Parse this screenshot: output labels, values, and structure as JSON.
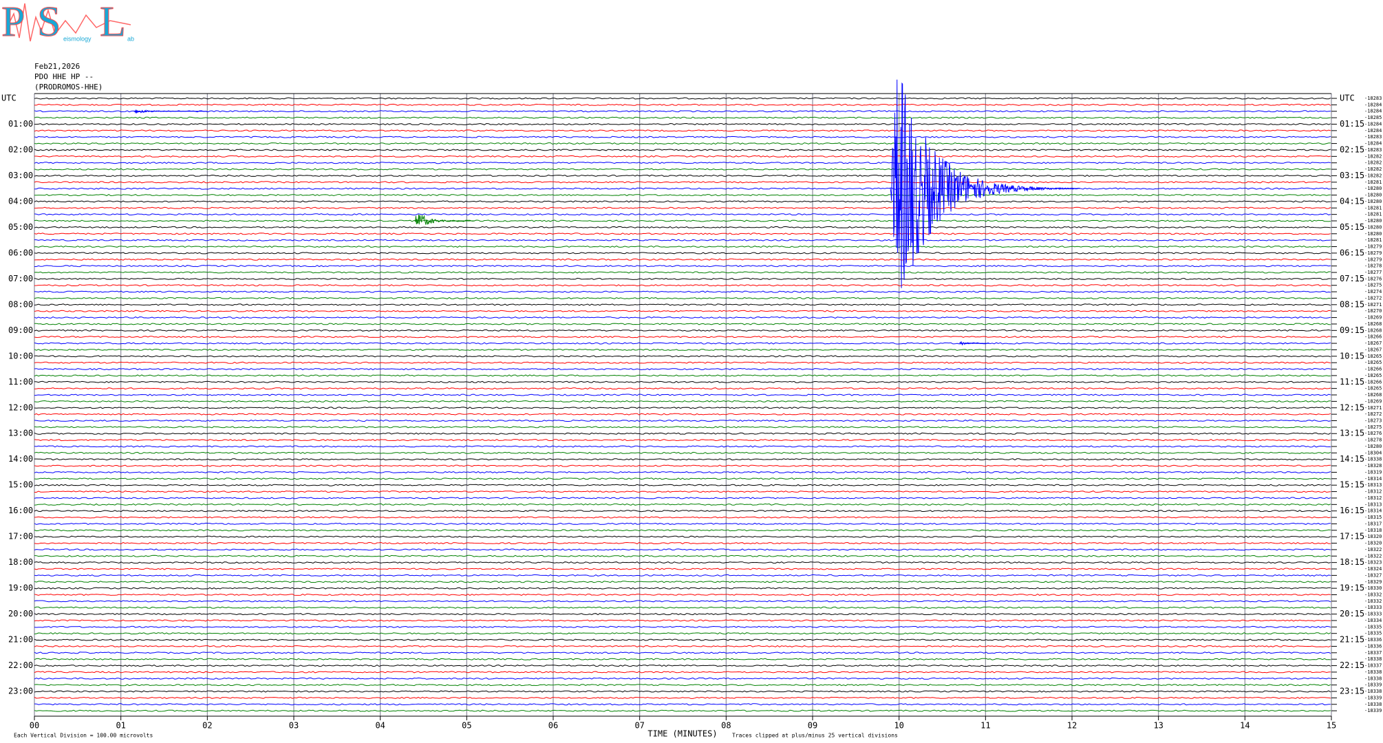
{
  "chart_data": {
    "type": "helicorder",
    "logo": {
      "letters": [
        "P",
        "S",
        "L"
      ],
      "small_texts": [
        "eismology",
        "ab"
      ]
    },
    "header": [
      "Feb21,2026",
      "PDO HHE HP --",
      "(PRODROMOS-HHE)"
    ],
    "left_labels": [
      "UTC",
      "01:00",
      "02:00",
      "03:00",
      "04:00",
      "05:00",
      "06:00",
      "07:00",
      "08:00",
      "09:00",
      "10:00",
      "11:00",
      "12:00",
      "13:00",
      "14:00",
      "15:00",
      "16:00",
      "17:00",
      "18:00",
      "19:00",
      "20:00",
      "21:00",
      "22:00",
      "23:00"
    ],
    "right_labels": [
      "UTC",
      "01:15",
      "02:15",
      "03:15",
      "04:15",
      "05:15",
      "06:15",
      "07:15",
      "08:15",
      "09:15",
      "10:15",
      "11:15",
      "12:15",
      "13:15",
      "14:15",
      "15:15",
      "16:15",
      "17:15",
      "18:15",
      "19:15",
      "20:15",
      "21:15",
      "22:15",
      "23:15"
    ],
    "trace_offsets": [
      "-18283",
      "-18284",
      "-18284",
      "-18285",
      "-18284",
      "-18284",
      "-18283",
      "-18284",
      "-18283",
      "-18282",
      "-18282",
      "-18282",
      "-18282",
      "-18281",
      "-18280",
      "-18280",
      "-18280",
      "-18281",
      "-18281",
      "-18280",
      "-18280",
      "-18280",
      "-18281",
      "-18279",
      "-18279",
      "-18279",
      "-18278",
      "-18277",
      "-18276",
      "-18275",
      "-18274",
      "-18272",
      "-18271",
      "-18270",
      "-18269",
      "-18268",
      "-18268",
      "-18266",
      "-18267",
      "-18267",
      "-18265",
      "-18265",
      "-18266",
      "-18265",
      "-18266",
      "-18265",
      "-18268",
      "-18269",
      "-18271",
      "-18272",
      "-18273",
      "-18275",
      "-18276",
      "-18278",
      "-18280",
      "-18304",
      "-18338",
      "-18328",
      "-18319",
      "-18314",
      "-18313",
      "-18312",
      "-18312",
      "-18313",
      "-18314",
      "-18315",
      "-18317",
      "-18318",
      "-18320",
      "-18320",
      "-18322",
      "-18322",
      "-18323",
      "-18324",
      "-18327",
      "-18329",
      "-18330",
      "-18332",
      "-18332",
      "-18333",
      "-18333",
      "-18334",
      "-18335",
      "-18335",
      "-18336",
      "-18336",
      "-18337",
      "-18338",
      "-18337",
      "-18338",
      "-18338",
      "-18339",
      "-18338",
      "-18339",
      "-18338",
      "-18339"
    ],
    "trace_colors": [
      "#000000",
      "#ff0000",
      "#0000ff",
      "#008000"
    ],
    "xlim": [
      0,
      15
    ],
    "xticks": [
      {
        "value": 0,
        "label": "00"
      },
      {
        "value": 1,
        "label": "01"
      },
      {
        "value": 2,
        "label": "02"
      },
      {
        "value": 3,
        "label": "03"
      },
      {
        "value": 4,
        "label": "04"
      },
      {
        "value": 5,
        "label": "05"
      },
      {
        "value": 6,
        "label": "06"
      },
      {
        "value": 7,
        "label": "07"
      },
      {
        "value": 8,
        "label": "08"
      },
      {
        "value": 9,
        "label": "09"
      },
      {
        "value": 10,
        "label": "10"
      },
      {
        "value": 11,
        "label": "11"
      },
      {
        "value": 12,
        "label": "12"
      },
      {
        "value": 13,
        "label": "13"
      },
      {
        "value": 14,
        "label": "14"
      },
      {
        "value": 15,
        "label": "15"
      }
    ],
    "grid": true,
    "grid_color": "#8a8a9a",
    "events": [
      {
        "trace": 2,
        "start": 1.15,
        "end": 2.0,
        "amplitude": 0.4
      },
      {
        "trace": 14,
        "start": 9.9,
        "end": 12.1,
        "amplitude": 25
      },
      {
        "trace": 19,
        "start": 4.4,
        "end": 5.1,
        "amplitude": 2
      },
      {
        "trace": 38,
        "start": 10.7,
        "end": 11.05,
        "amplitude": 0.5
      }
    ],
    "xlabel": "TIME (MINUTES)",
    "footer_left": "Each Vertical Division =  100.00 microvolts",
    "footer_right": "Traces clipped at plus/minus 25 vertical divisions"
  }
}
